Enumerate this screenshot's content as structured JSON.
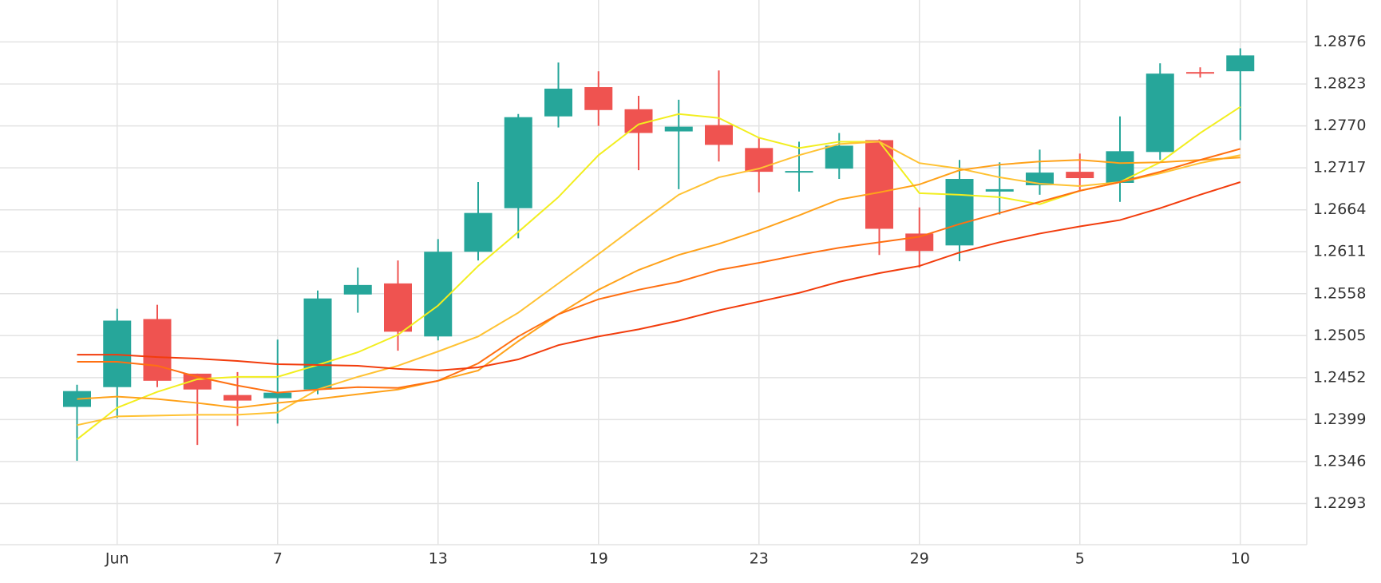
{
  "chart_data": {
    "type": "candlestick",
    "categories": [
      null,
      "Jun",
      null,
      null,
      null,
      "7",
      null,
      null,
      null,
      "13",
      null,
      null,
      null,
      "19",
      null,
      null,
      null,
      "23",
      null,
      null,
      null,
      "29",
      null,
      null,
      null,
      "5",
      null,
      null,
      null,
      "10"
    ],
    "open": [
      1.2415,
      1.244,
      1.2526,
      1.2457,
      1.243,
      1.2426,
      1.2437,
      1.2557,
      1.2571,
      1.2504,
      1.2611,
      1.2666,
      1.2782,
      1.2819,
      1.2791,
      1.2763,
      1.2771,
      1.2742,
      1.2712,
      1.2716,
      1.2752,
      1.2634,
      1.2619,
      1.2687,
      1.2695,
      1.2712,
      1.2698,
      1.2737,
      1.2838,
      1.2839
    ],
    "high": [
      1.2443,
      1.2539,
      1.2544,
      1.2457,
      1.2459,
      1.25,
      1.2562,
      1.2591,
      1.26,
      1.2627,
      1.2699,
      1.2785,
      1.285,
      1.2839,
      1.2808,
      1.2803,
      1.284,
      1.2755,
      1.275,
      1.2761,
      1.2753,
      1.2667,
      1.2727,
      1.2724,
      1.274,
      1.2735,
      1.2782,
      1.2849,
      1.2844,
      1.2868
    ],
    "low": [
      1.2347,
      1.2401,
      1.244,
      1.2367,
      1.2391,
      1.2394,
      1.2431,
      1.2534,
      1.2486,
      1.2499,
      1.26,
      1.2628,
      1.2768,
      1.277,
      1.2714,
      1.269,
      1.2725,
      1.2686,
      1.2687,
      1.2703,
      1.2607,
      1.2591,
      1.2599,
      1.2658,
      1.2683,
      1.2689,
      1.2674,
      1.2727,
      1.2831,
      1.2752
    ],
    "close": [
      1.2435,
      1.2524,
      1.2448,
      1.2437,
      1.2423,
      1.2433,
      1.2552,
      1.2569,
      1.251,
      1.2611,
      1.266,
      1.2781,
      1.2817,
      1.279,
      1.2761,
      1.2769,
      1.2746,
      1.2712,
      1.2713,
      1.2745,
      1.264,
      1.2612,
      1.2703,
      1.269,
      1.2711,
      1.2704,
      1.2738,
      1.2836,
      1.2837,
      1.2859
    ],
    "up_color": "#26a69a",
    "down_color": "#ef5350",
    "lines": [
      {
        "color": "#f2ee1f",
        "values": [
          1.2374,
          1.2414,
          1.2434,
          1.245,
          1.2453,
          1.2453,
          1.2468,
          1.2484,
          1.2506,
          1.2543,
          1.2593,
          1.2636,
          1.268,
          1.2733,
          1.2772,
          1.2785,
          1.278,
          1.2755,
          1.2742,
          1.275,
          1.275,
          1.2685,
          1.2683,
          1.268,
          1.2671,
          1.2688,
          1.2699,
          1.2724,
          1.2761,
          1.2794
        ]
      },
      {
        "color": "#ffc233",
        "values": [
          1.2392,
          1.2403,
          1.2404,
          1.2405,
          1.2405,
          1.2408,
          1.2437,
          1.2453,
          1.2467,
          1.2485,
          1.2504,
          1.2534,
          1.2571,
          1.2608,
          1.2646,
          1.2683,
          1.2705,
          1.2716,
          1.2733,
          1.2747,
          1.275,
          1.2723,
          1.2716,
          1.2705,
          1.2697,
          1.2694,
          1.2699,
          1.271,
          1.2723,
          1.2733
        ]
      },
      {
        "color": "#ffa21a",
        "values": [
          1.2425,
          1.2428,
          1.2425,
          1.242,
          1.2414,
          1.242,
          1.2425,
          1.2431,
          1.2437,
          1.2448,
          1.2461,
          1.2498,
          1.2532,
          1.2563,
          1.2588,
          1.2607,
          1.2621,
          1.2638,
          1.2657,
          1.2677,
          1.2686,
          1.2696,
          1.2714,
          1.2721,
          1.2725,
          1.2727,
          1.2723,
          1.2724,
          1.2727,
          1.273
        ]
      },
      {
        "color": "#ff7012",
        "values": [
          1.2472,
          1.2472,
          1.2467,
          1.2453,
          1.2442,
          1.2433,
          1.2437,
          1.244,
          1.2439,
          1.2448,
          1.247,
          1.2504,
          1.2532,
          1.2551,
          1.2563,
          1.2573,
          1.2588,
          1.2597,
          1.2607,
          1.2616,
          1.2623,
          1.263,
          1.2646,
          1.266,
          1.2674,
          1.2688,
          1.2699,
          1.2712,
          1.2727,
          1.2741
        ]
      },
      {
        "color": "#f23c0c",
        "values": [
          1.2481,
          1.2481,
          1.2478,
          1.2476,
          1.2473,
          1.2469,
          1.2468,
          1.2467,
          1.2463,
          1.2461,
          1.2465,
          1.2475,
          1.2493,
          1.2504,
          1.2513,
          1.2524,
          1.2537,
          1.2548,
          1.2559,
          1.2573,
          1.2584,
          1.2593,
          1.261,
          1.2623,
          1.2634,
          1.2643,
          1.2651,
          1.2666,
          1.2683,
          1.2699
        ]
      }
    ],
    "ylim": [
      1.2241,
      1.2929
    ],
    "yticks": [
      1.2293,
      1.2346,
      1.2399,
      1.2452,
      1.2505,
      1.2558,
      1.2611,
      1.2664,
      1.2717,
      {
        "value": 1.277,
        "label": "1.2770"
      },
      1.2823,
      1.2876
    ],
    "grid": true
  }
}
